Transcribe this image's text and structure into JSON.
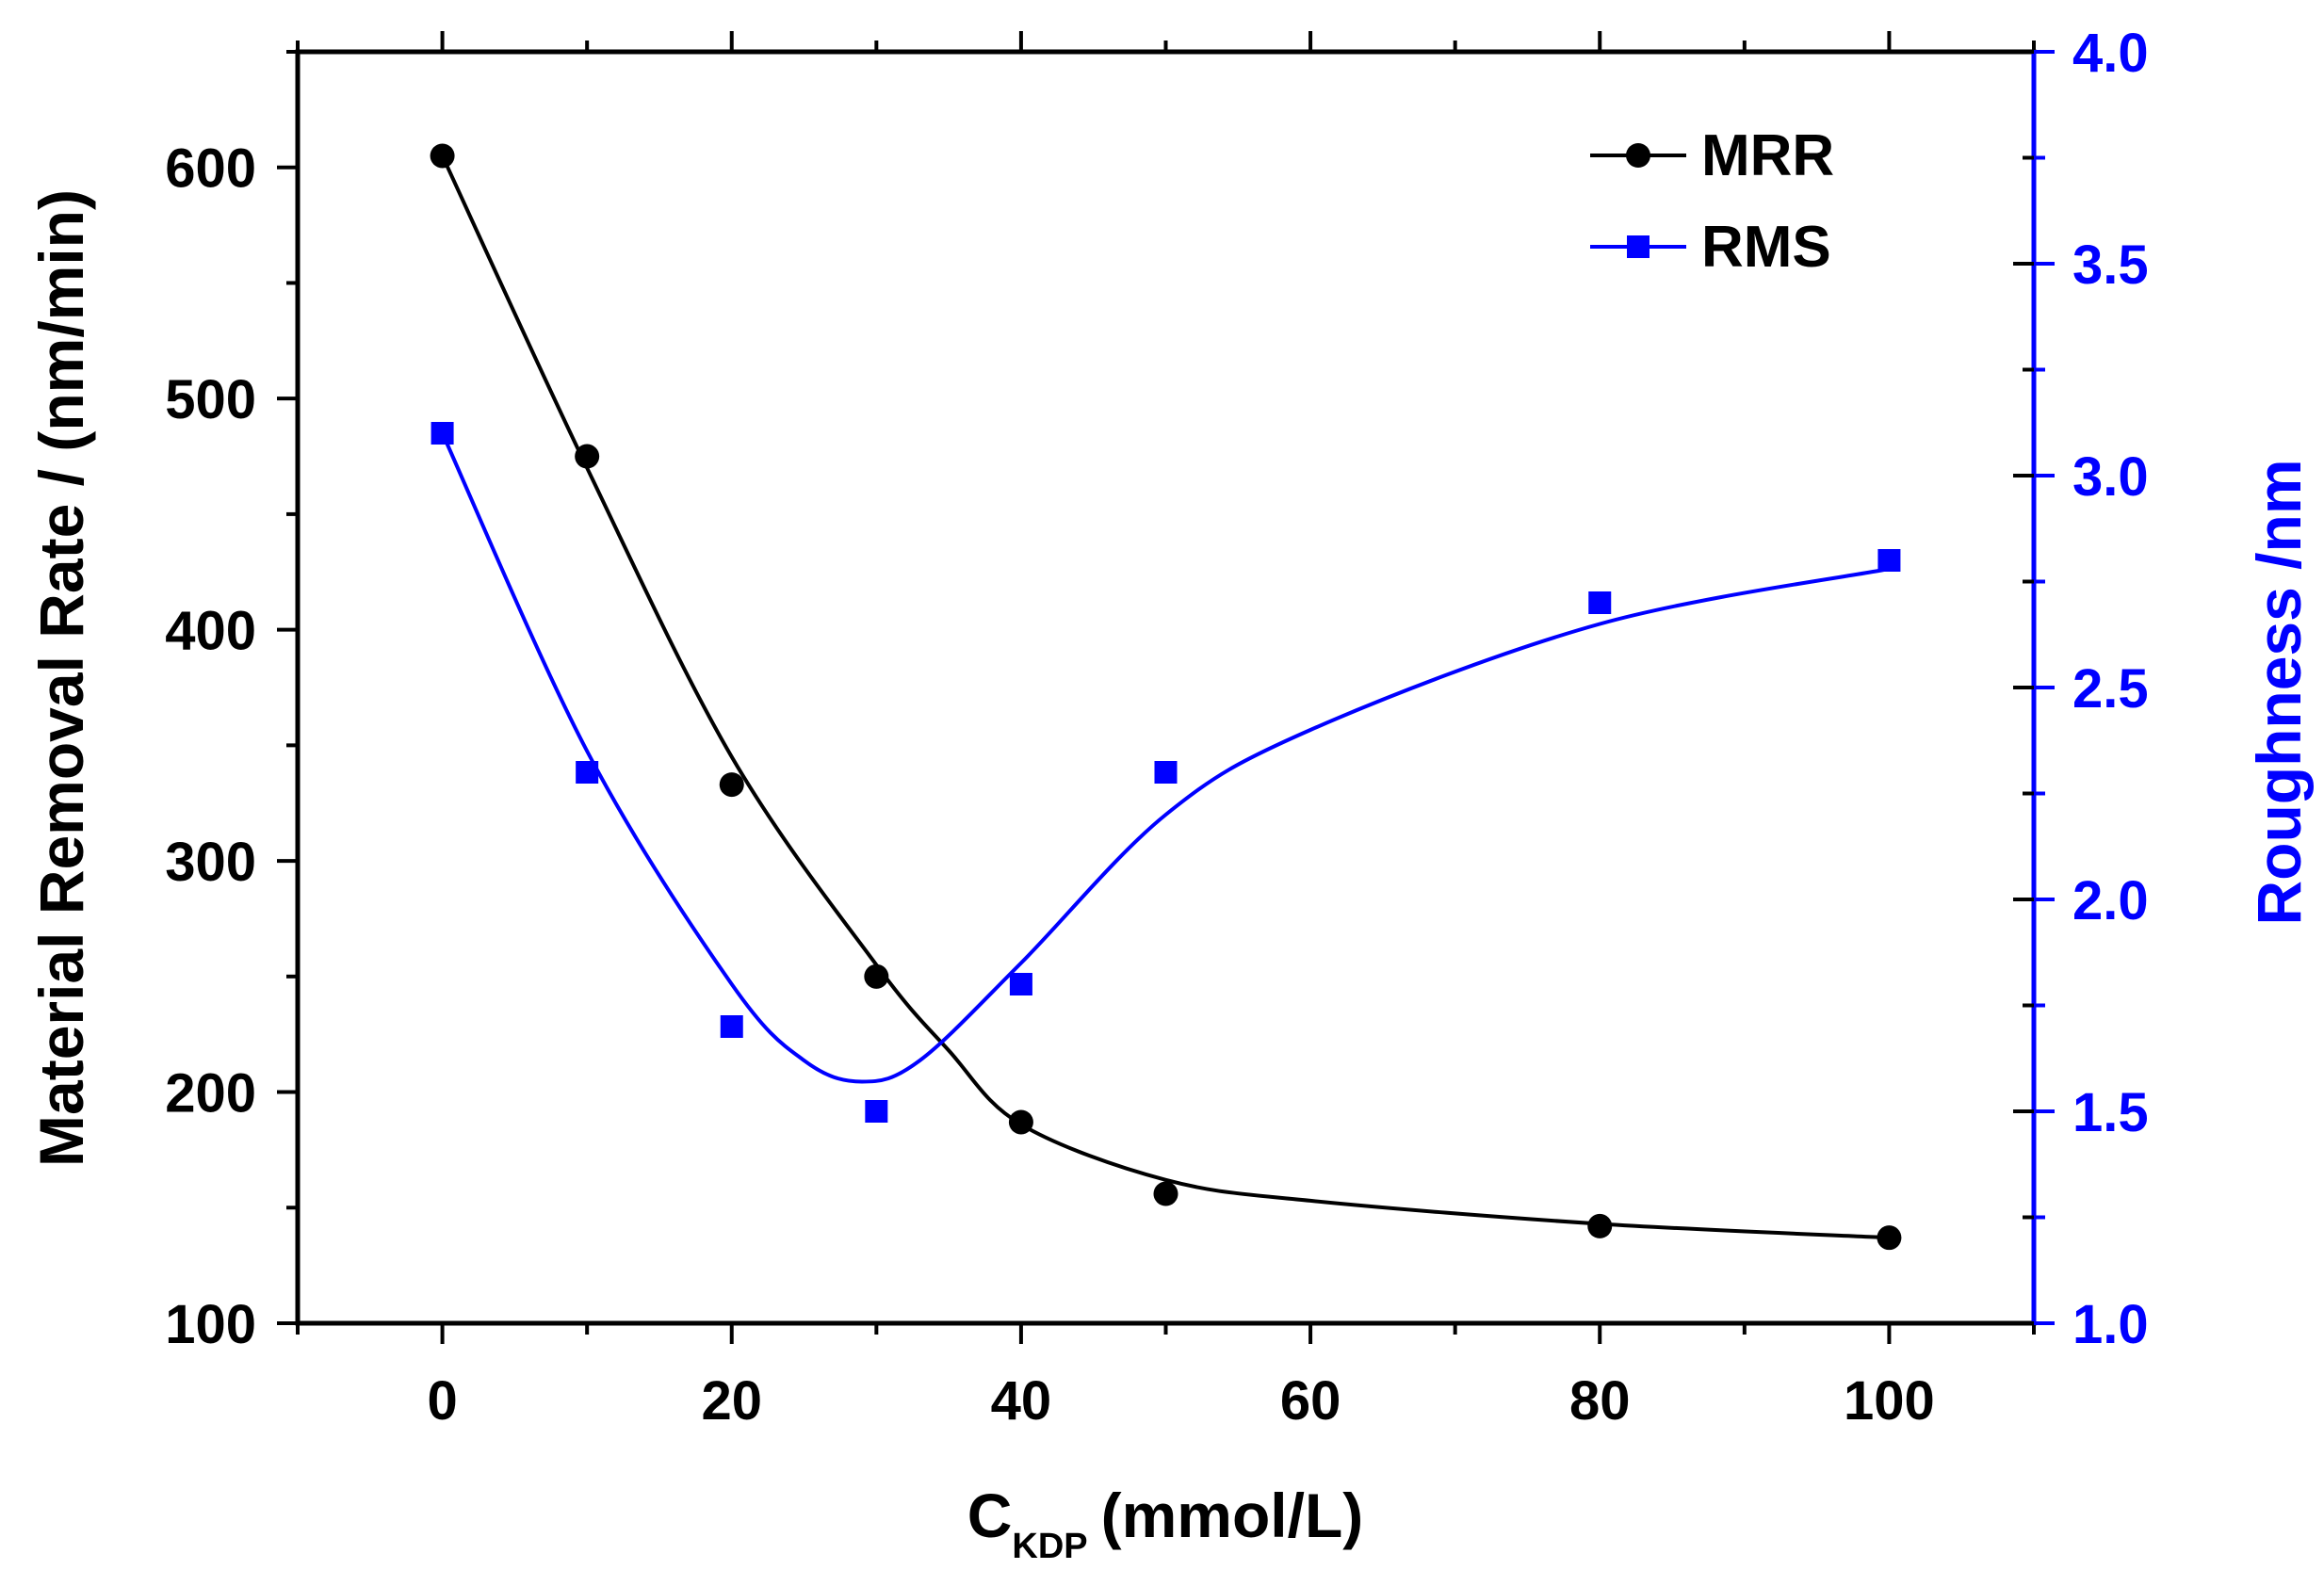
{
  "chart_data": {
    "type": "line",
    "title": "",
    "xlabel_main": "C",
    "xlabel_sub": "KDP",
    "xlabel_unit": "(mmol/L)",
    "ylabel_left": "Material Removal Rate / (nm/min)",
    "ylabel_right": "Roughness /nm",
    "xlim": [
      -10,
      110
    ],
    "ylim_left": [
      100,
      650
    ],
    "ylim_right": [
      1.0,
      4.0
    ],
    "x_ticks": [
      "0",
      "20",
      "40",
      "60",
      "80",
      "100"
    ],
    "y_left_ticks": [
      "100",
      "200",
      "300",
      "400",
      "500",
      "600"
    ],
    "y_right_ticks": [
      "1.0",
      "1.5",
      "2.0",
      "2.5",
      "3.0",
      "3.5",
      "4.0"
    ],
    "legend_position": "top-right",
    "series": [
      {
        "name": "MRR",
        "axis": "left",
        "marker": "circle",
        "color": "#000000",
        "x": [
          0,
          10,
          20,
          30,
          40,
          50,
          80,
          100
        ],
        "values": [
          605,
          475,
          333,
          250,
          187,
          156,
          142,
          137
        ],
        "fit_x": [
          0,
          10,
          20,
          30,
          35,
          40,
          50,
          60,
          80,
          100
        ],
        "fit_values": [
          605,
          470,
          345,
          255,
          218,
          186,
          162,
          153,
          143,
          137
        ]
      },
      {
        "name": "RMS",
        "axis": "right",
        "marker": "square",
        "color": "#0000ff",
        "x": [
          0,
          10,
          20,
          30,
          40,
          50,
          80,
          100
        ],
        "values": [
          3.1,
          2.3,
          1.7,
          1.5,
          1.8,
          2.3,
          2.7,
          2.8
        ],
        "fit_x": [
          0,
          10,
          20,
          25,
          29,
          33,
          40,
          50,
          60,
          80,
          100
        ],
        "fit_values": [
          3.1,
          2.35,
          1.8,
          1.62,
          1.57,
          1.62,
          1.85,
          2.2,
          2.4,
          2.65,
          2.78
        ]
      }
    ]
  }
}
